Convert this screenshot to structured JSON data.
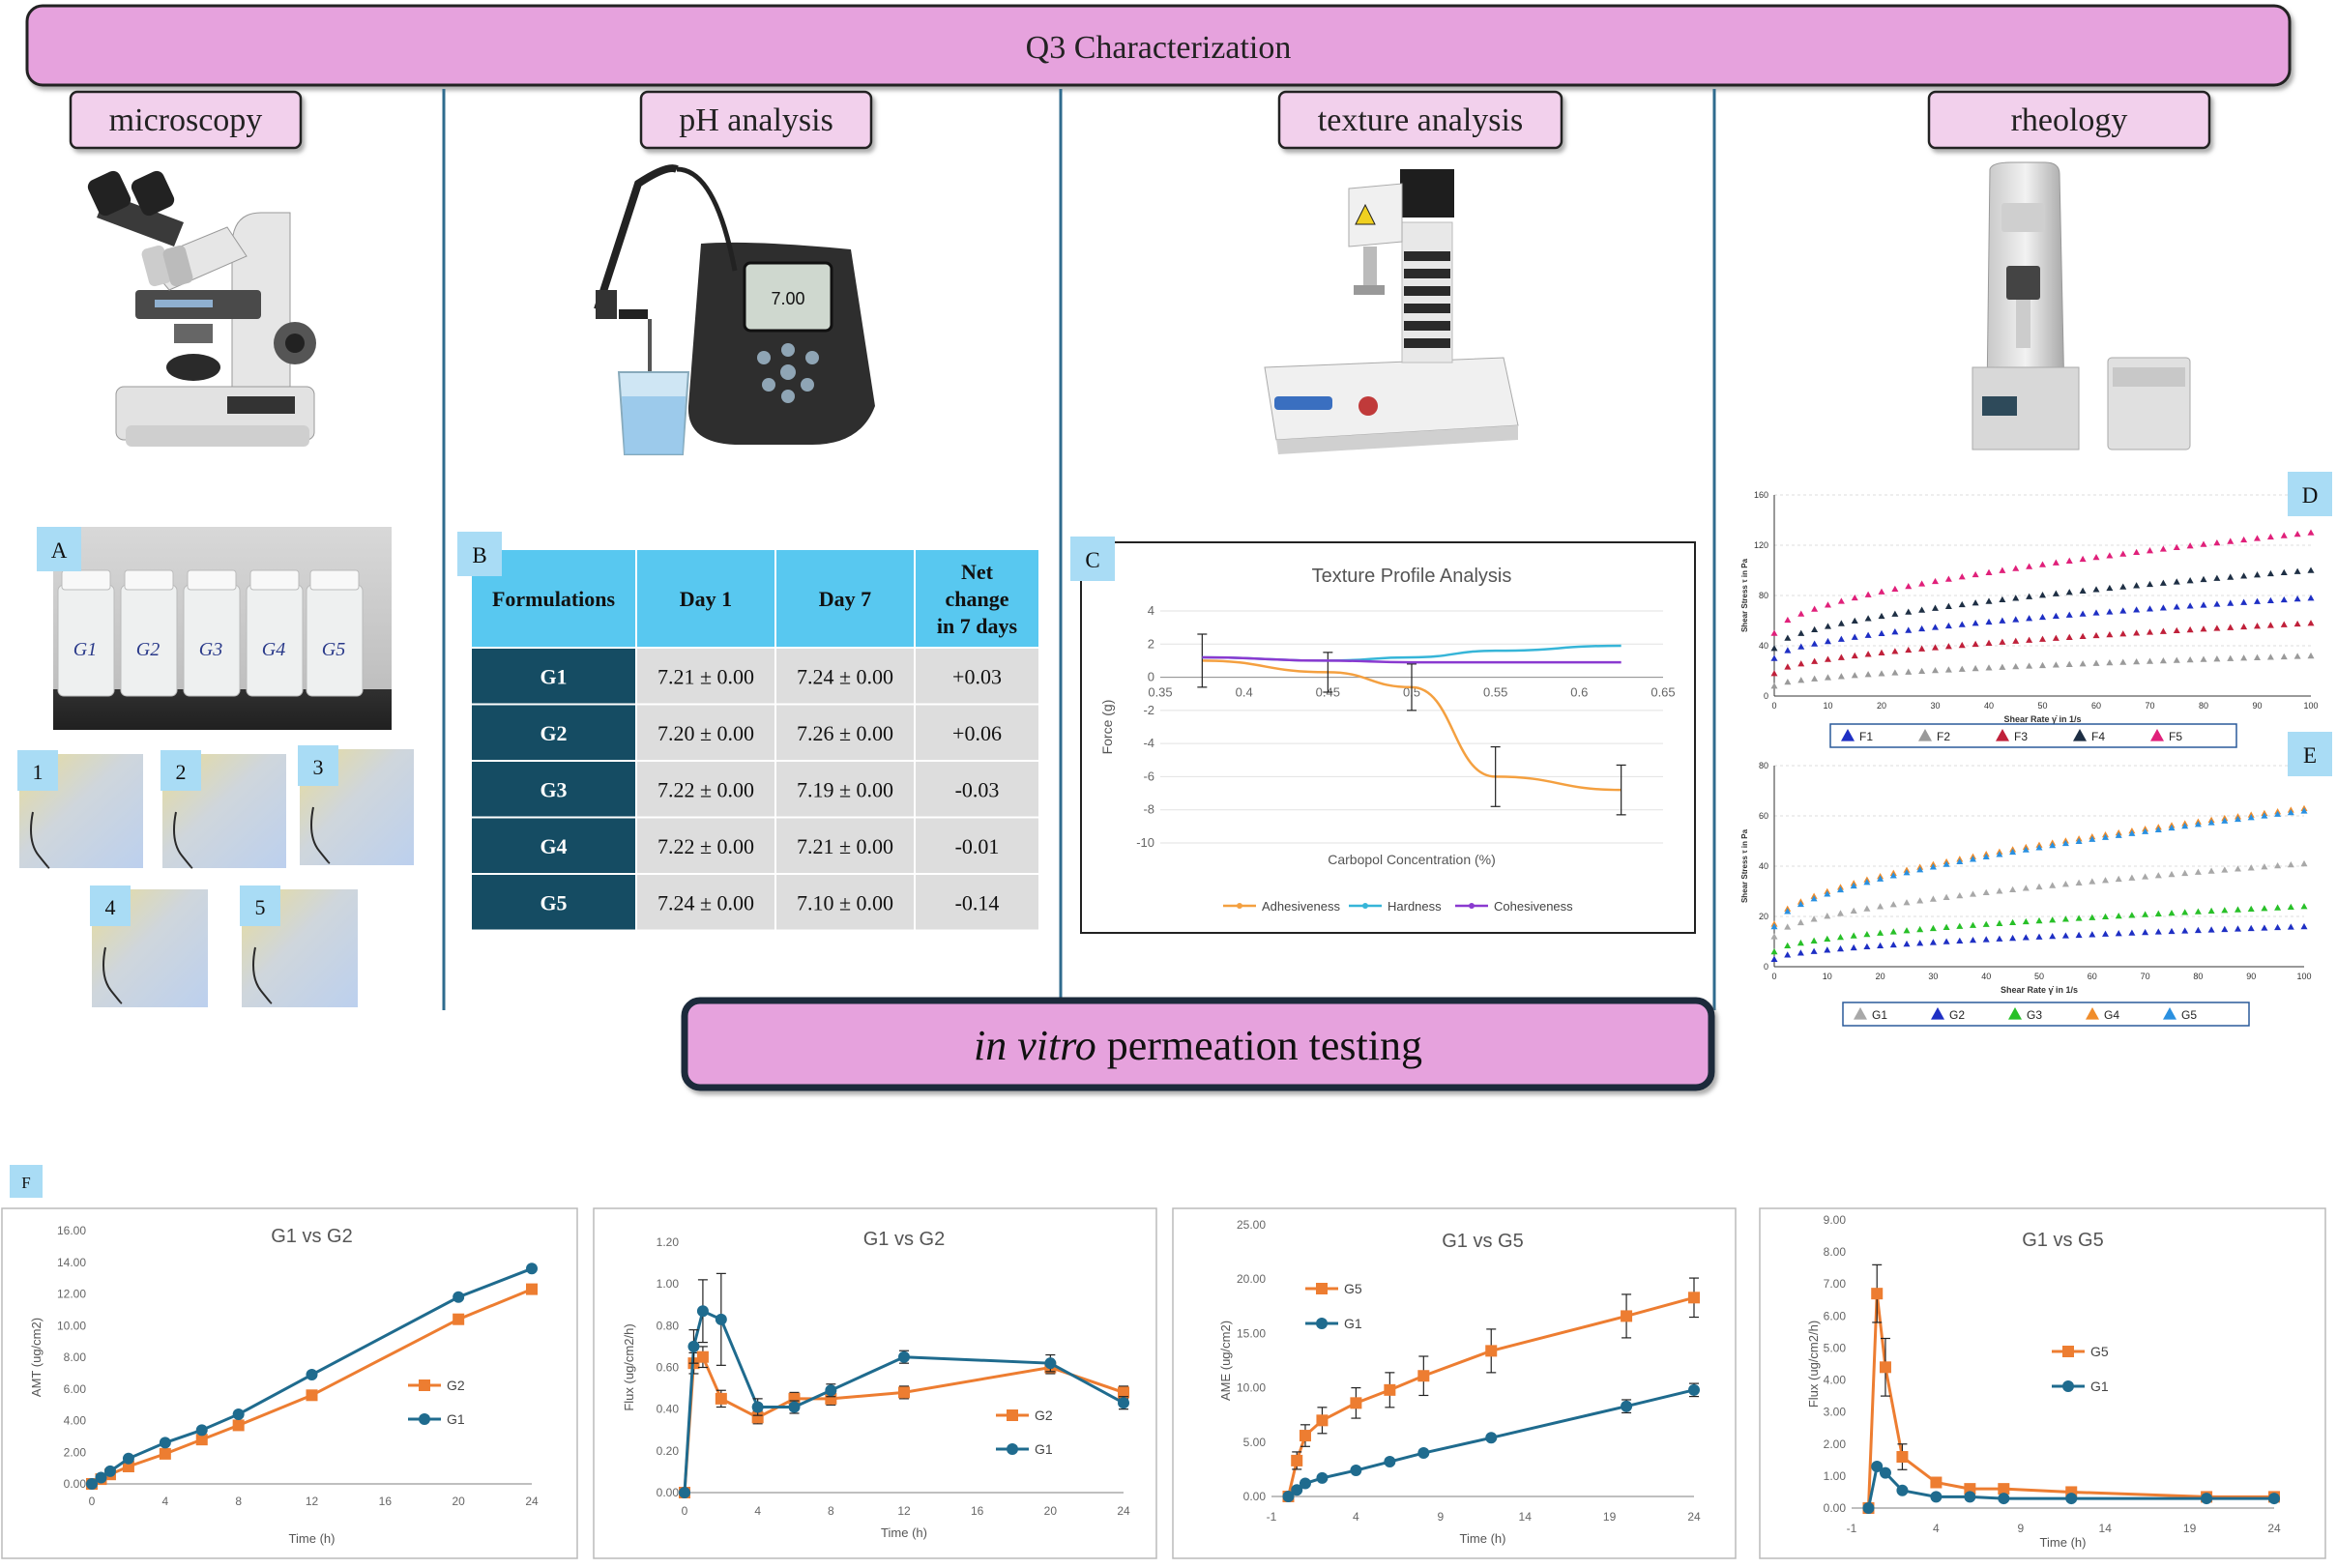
{
  "banner": {
    "title": "Q3 Characterization"
  },
  "sections": [
    "microscopy",
    "pH analysis",
    "texture analysis",
    "rheology"
  ],
  "panel_letters": {
    "a": "A",
    "b": "B",
    "c": "C",
    "d": "D",
    "e": "E",
    "f": "F"
  },
  "ph_meter_display": "7.00",
  "vial_labels": [
    "G1",
    "G2",
    "G3",
    "G4",
    "G5"
  ],
  "micro_labels": [
    "1",
    "2",
    "3",
    "4",
    "5"
  ],
  "ph_table": {
    "headers": [
      "Formulations",
      "Day 1",
      "Day 7",
      "Net change in 7 days"
    ],
    "rows": [
      [
        "G1",
        "7.21 ± 0.00",
        "7.24 ± 0.00",
        "+0.03"
      ],
      [
        "G2",
        "7.20 ± 0.00",
        "7.26 ± 0.00",
        "+0.06"
      ],
      [
        "G3",
        "7.22 ± 0.00",
        "7.19 ± 0.00",
        "-0.03"
      ],
      [
        "G4",
        "7.22 ± 0.00",
        "7.21 ± 0.00",
        "-0.01"
      ],
      [
        "G5",
        "7.24 ± 0.00",
        "7.10 ± 0.00",
        "-0.14"
      ]
    ]
  },
  "ivpt": {
    "title_italic": "in vitro",
    "title_rest": " permeation testing"
  },
  "colors": {
    "banner": "#e6a2dd",
    "section_box": "#f2d0ec",
    "table_header": "#58c8f0",
    "table_label": "#154c63",
    "table_cell": "#dddddd",
    "orange": "#ed7d31",
    "teal": "#1f6b8e",
    "divider": "#2f6b8e"
  },
  "chart_data": [
    {
      "id": "C",
      "type": "line",
      "title": "Texture Profile Analysis",
      "xlabel": "Carbopol Concentration (%)",
      "ylabel": "Force (g)",
      "xlim": [
        0.35,
        0.65
      ],
      "ylim": [
        -10,
        4
      ],
      "xticks": [
        "0.35",
        "0.4",
        "0.45",
        "0.5",
        "0.55",
        "0.6",
        "0.65"
      ],
      "yticks": [
        "4",
        "2",
        "0",
        "-2",
        "-4",
        "-6",
        "-8",
        "-10"
      ],
      "legend": "bottom",
      "grid": true,
      "x": [
        0.375,
        0.45,
        0.5,
        0.55,
        0.625
      ],
      "series": [
        {
          "name": "Adhesiveness",
          "color": "#f4a040",
          "values": [
            1.0,
            0.3,
            -0.6,
            -6.0,
            -6.8
          ],
          "err": [
            1.6,
            1.2,
            1.4,
            1.8,
            1.5
          ]
        },
        {
          "name": "Hardness",
          "color": "#36b5d8",
          "values": [
            1.2,
            1.0,
            1.2,
            1.6,
            1.9
          ],
          "err": [
            0,
            0,
            0,
            0,
            0
          ]
        },
        {
          "name": "Cohesiveness",
          "color": "#8a3ad0",
          "values": [
            1.2,
            1.0,
            0.9,
            0.9,
            0.9
          ],
          "err": [
            0,
            0,
            0,
            0,
            0
          ]
        }
      ]
    },
    {
      "id": "D",
      "type": "scatter",
      "xlabel": "Shear Rate γ̇ in 1/s",
      "ylabel": "Shear Stress τ in Pa",
      "xlim": [
        0,
        100
      ],
      "ylim": [
        0,
        160
      ],
      "xticks": [
        "0",
        "10",
        "20",
        "30",
        "40",
        "50",
        "60",
        "70",
        "80",
        "90",
        "100"
      ],
      "yticks": [
        "160",
        "120",
        "80",
        "40",
        "0"
      ],
      "legend": "bottom",
      "series": [
        {
          "name": "F1",
          "color": "#1e2fc4",
          "values": [
            30,
            78
          ]
        },
        {
          "name": "F2",
          "color": "#9a9a9a",
          "values": [
            8,
            32
          ]
        },
        {
          "name": "F3",
          "color": "#c0203a",
          "values": [
            18,
            58
          ]
        },
        {
          "name": "F4",
          "color": "#1e2f44",
          "values": [
            38,
            100
          ]
        },
        {
          "name": "F5",
          "color": "#e0207a",
          "values": [
            50,
            130
          ]
        }
      ]
    },
    {
      "id": "E",
      "type": "scatter",
      "xlabel": "Shear Rate γ̇ in 1/s",
      "ylabel": "Shear Stress τ in Pa",
      "xlim": [
        0,
        100
      ],
      "ylim": [
        0,
        80
      ],
      "xticks": [
        "0",
        "10",
        "20",
        "30",
        "40",
        "50",
        "60",
        "70",
        "80",
        "90",
        "100"
      ],
      "yticks": [
        "80",
        "60",
        "40",
        "20",
        "0"
      ],
      "legend": "bottom",
      "series": [
        {
          "name": "G1",
          "color": "#a8a8a8",
          "values": [
            12,
            41
          ]
        },
        {
          "name": "G2",
          "color": "#1e2fc4",
          "values": [
            3,
            16
          ]
        },
        {
          "name": "G3",
          "color": "#28c028",
          "values": [
            6,
            24
          ]
        },
        {
          "name": "G4",
          "color": "#f08c2a",
          "values": [
            17,
            63
          ]
        },
        {
          "name": "G5",
          "color": "#2a90e0",
          "values": [
            16,
            62
          ]
        }
      ]
    },
    {
      "id": "F1",
      "type": "line",
      "title": "G1 vs G2",
      "xlabel": "Time (h)",
      "ylabel": "AMT (ug/cm2)",
      "xlim": [
        0,
        24
      ],
      "ylim": [
        0,
        16
      ],
      "xticks": [
        "0",
        "4",
        "8",
        "12",
        "16",
        "20",
        "24"
      ],
      "yticks": [
        "16.00",
        "14.00",
        "12.00",
        "10.00",
        "8.00",
        "6.00",
        "4.00",
        "2.00",
        "0.00"
      ],
      "legend": "right",
      "x": [
        0,
        0.5,
        1,
        2,
        4,
        6,
        8,
        12,
        20,
        24
      ],
      "series": [
        {
          "name": "G2",
          "color": "#ed7d31",
          "marker": "square",
          "values": [
            0.0,
            0.3,
            0.6,
            1.1,
            1.9,
            2.8,
            3.7,
            5.6,
            10.4,
            12.3
          ],
          "err": [
            0,
            0,
            0,
            0,
            0,
            0,
            0,
            0,
            0,
            0
          ]
        },
        {
          "name": "G1",
          "color": "#1f6b8e",
          "marker": "circle",
          "values": [
            0.0,
            0.4,
            0.8,
            1.6,
            2.6,
            3.4,
            4.4,
            6.9,
            11.8,
            13.6
          ],
          "err": [
            0,
            0,
            0,
            0,
            0,
            0,
            0,
            0,
            0,
            0
          ]
        }
      ]
    },
    {
      "id": "F2",
      "type": "line",
      "title": "G1 vs G2",
      "xlabel": "Time (h)",
      "ylabel": "Flux (ug/cm2/h)",
      "xlim": [
        0,
        24
      ],
      "ylim": [
        0,
        1.2
      ],
      "xticks": [
        "0",
        "4",
        "8",
        "12",
        "16",
        "20",
        "24"
      ],
      "yticks": [
        "1.20",
        "1.00",
        "0.80",
        "0.60",
        "0.40",
        "0.20",
        "0.00"
      ],
      "legend": "right",
      "x": [
        0,
        0.5,
        1,
        2,
        4,
        6,
        8,
        12,
        20,
        24
      ],
      "series": [
        {
          "name": "G2",
          "color": "#ed7d31",
          "marker": "square",
          "values": [
            0.0,
            0.62,
            0.65,
            0.45,
            0.36,
            0.45,
            0.45,
            0.48,
            0.6,
            0.48
          ],
          "err": [
            0,
            0.05,
            0.05,
            0.04,
            0.03,
            0.03,
            0.03,
            0.03,
            0.03,
            0.03
          ]
        },
        {
          "name": "G1",
          "color": "#1f6b8e",
          "marker": "circle",
          "values": [
            0.0,
            0.7,
            0.87,
            0.83,
            0.41,
            0.41,
            0.49,
            0.65,
            0.62,
            0.43
          ],
          "err": [
            0,
            0.08,
            0.15,
            0.22,
            0.04,
            0.03,
            0.03,
            0.03,
            0.04,
            0.03
          ]
        }
      ]
    },
    {
      "id": "F3",
      "type": "line",
      "title": "G1 vs G5",
      "xlabel": "Time (h)",
      "ylabel": "AME (ug/cm2)",
      "xlim": [
        -1,
        24
      ],
      "ylim": [
        0,
        25
      ],
      "xticks": [
        "-1",
        "4",
        "9",
        "14",
        "19",
        "24"
      ],
      "yticks": [
        "25.00",
        "20.00",
        "15.00",
        "10.00",
        "5.00",
        "0.00"
      ],
      "legend": "top-left",
      "x": [
        0,
        0.5,
        1,
        2,
        4,
        6,
        8,
        12,
        20,
        24
      ],
      "series": [
        {
          "name": "G5",
          "color": "#ed7d31",
          "marker": "square",
          "values": [
            0.0,
            3.3,
            5.6,
            7.0,
            8.6,
            9.8,
            11.1,
            13.4,
            16.6,
            18.3
          ],
          "err": [
            0,
            0.8,
            1.0,
            1.2,
            1.4,
            1.6,
            1.8,
            2.0,
            2.0,
            1.8
          ]
        },
        {
          "name": "G1",
          "color": "#1f6b8e",
          "marker": "circle",
          "values": [
            0.0,
            0.6,
            1.2,
            1.7,
            2.4,
            3.2,
            4.0,
            5.4,
            8.3,
            9.8
          ],
          "err": [
            0,
            0,
            0,
            0,
            0,
            0,
            0,
            0,
            0.6,
            0.6
          ]
        }
      ]
    },
    {
      "id": "F4",
      "type": "line",
      "title": "G1 vs G5",
      "xlabel": "Time (h)",
      "ylabel": "Flux (ug/cm2/h)",
      "xlim": [
        -1,
        24
      ],
      "ylim": [
        0,
        9
      ],
      "xticks": [
        "-1",
        "4",
        "9",
        "14",
        "19",
        "24"
      ],
      "yticks": [
        "9.00",
        "8.00",
        "7.00",
        "6.00",
        "5.00",
        "4.00",
        "3.00",
        "2.00",
        "1.00",
        "0.00"
      ],
      "legend": "right",
      "x": [
        0,
        0.5,
        1,
        2,
        4,
        6,
        8,
        12,
        20,
        24
      ],
      "series": [
        {
          "name": "G5",
          "color": "#ed7d31",
          "marker": "square",
          "values": [
            0.0,
            6.7,
            4.4,
            1.6,
            0.8,
            0.6,
            0.6,
            0.5,
            0.35,
            0.35
          ],
          "err": [
            0,
            0.9,
            0.9,
            0.4,
            0.1,
            0.05,
            0.05,
            0.05,
            0.05,
            0.05
          ]
        },
        {
          "name": "G1",
          "color": "#1f6b8e",
          "marker": "circle",
          "values": [
            0.0,
            1.3,
            1.1,
            0.55,
            0.35,
            0.35,
            0.3,
            0.3,
            0.3,
            0.3
          ],
          "err": [
            0,
            0,
            0,
            0,
            0,
            0,
            0,
            0,
            0,
            0
          ]
        }
      ]
    }
  ]
}
